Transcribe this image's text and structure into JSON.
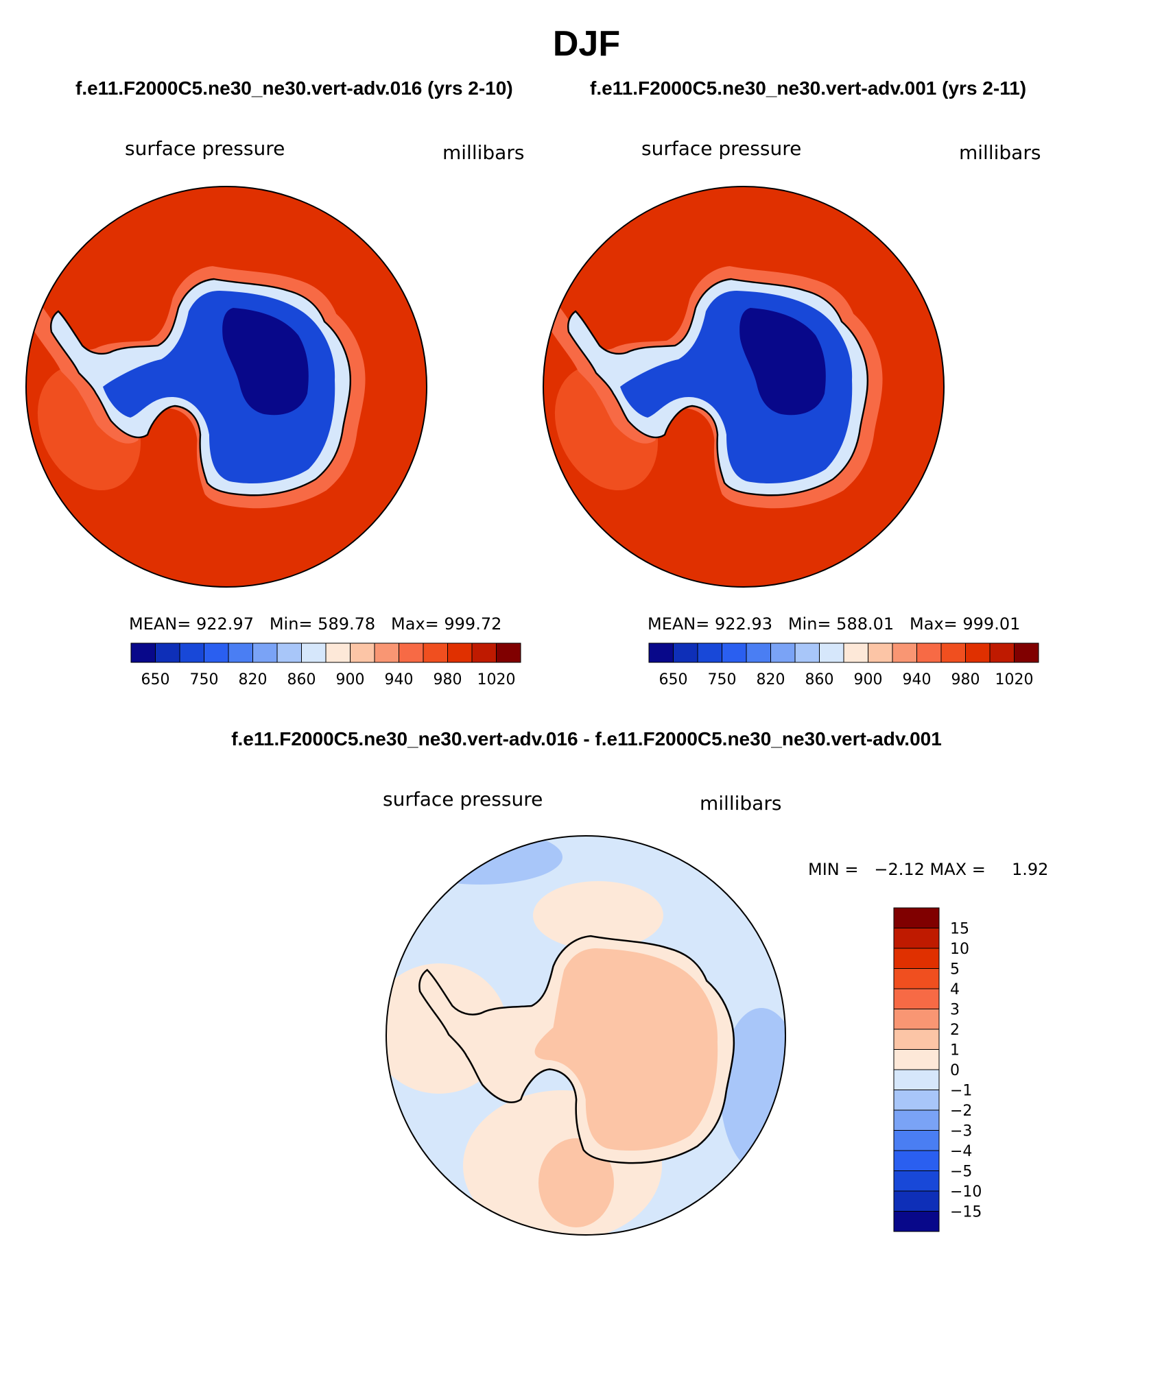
{
  "season": "DJF",
  "header": {
    "case_a": "f.e11.F2000C5.ne30_ne30.vert-adv.016 (yrs 2-10)",
    "case_b": "f.e11.F2000C5.ne30_ne30.vert-adv.001 (yrs 2-11)"
  },
  "panel_a": {
    "variable": "surface pressure",
    "units": "millibars",
    "stats": "MEAN= 922.97   Min= 589.78   Max= 999.72"
  },
  "panel_b": {
    "variable": "surface pressure",
    "units": "millibars",
    "stats": "MEAN= 922.93   Min= 588.01   Max= 999.01"
  },
  "abs_colorbar": {
    "colors": [
      "#08088a",
      "#0e2fb8",
      "#1848d8",
      "#2a5ff0",
      "#4a7ef3",
      "#7aa3f6",
      "#a8c6f9",
      "#d6e7fb",
      "#fde8d8",
      "#fcc5a6",
      "#f99673",
      "#f76a45",
      "#f04f1f",
      "#e03000",
      "#bf1a00",
      "#800000"
    ],
    "tick_labels": [
      "650",
      "750",
      "820",
      "860",
      "900",
      "940",
      "980",
      "1020"
    ]
  },
  "diff_panel": {
    "title": "f.e11.F2000C5.ne30_ne30.vert-adv.016 - f.e11.F2000C5.ne30_ne30.vert-adv.001",
    "variable": "surface pressure",
    "units": "millibars",
    "minmax": "MIN =   −2.12 MAX =     1.92"
  },
  "diff_colorbar": {
    "colors_top_to_bottom": [
      "#800000",
      "#bf1a00",
      "#e03000",
      "#f04f1f",
      "#f76a45",
      "#f99673",
      "#fcc5a6",
      "#fde8d8",
      "#d6e7fb",
      "#a8c6f9",
      "#7aa3f6",
      "#4a7ef3",
      "#2a5ff0",
      "#1848d8",
      "#0e2fb8",
      "#08088a"
    ],
    "tick_labels": [
      "15",
      "10",
      "5",
      "4",
      "3",
      "2",
      "1",
      "0",
      "−1",
      "−2",
      "−3",
      "−4",
      "−5",
      "−10",
      "−15"
    ]
  },
  "colors": {
    "ocean_high": "#e03000",
    "shelf_mid": "#f04f1f",
    "ice_low": "#1848d8",
    "ice_lowest": "#08088a",
    "diff_pos": "#fde8d8",
    "diff_pos2": "#fcc5a6",
    "diff_neg": "#d6e7fb",
    "diff_neg2": "#a8c6f9"
  }
}
